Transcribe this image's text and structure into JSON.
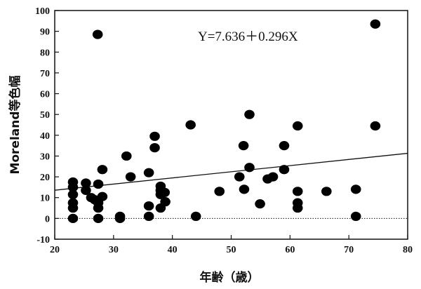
{
  "chart_data": {
    "type": "scatter",
    "title": "",
    "xlabel": "年齢（歳）",
    "ylabel": "Moreland等色幅",
    "xlim": [
      20,
      80
    ],
    "ylim": [
      -10,
      100
    ],
    "xticks": [
      20,
      30,
      40,
      50,
      60,
      70,
      80
    ],
    "yticks": [
      -10,
      0,
      10,
      20,
      30,
      40,
      50,
      60,
      70,
      80,
      90,
      100
    ],
    "xtick_labels": [
      "20",
      "30",
      "40",
      "50",
      "60",
      "70",
      "80"
    ],
    "ytick_labels": [
      "-10",
      "0",
      "10",
      "20",
      "30",
      "40",
      "50",
      "60",
      "70",
      "80",
      "90",
      "100"
    ],
    "equation": "Y=7.636＋0.296X",
    "regression": {
      "intercept": 7.636,
      "slope": 0.296,
      "x_range": [
        20,
        80
      ]
    },
    "reference_line": {
      "y": 0,
      "style": "dotted"
    },
    "point_color": "#000000",
    "points": [
      {
        "x": 27.3,
        "y": 88.5
      },
      {
        "x": 74.5,
        "y": 93.5
      },
      {
        "x": 23.1,
        "y": 17.5
      },
      {
        "x": 23.1,
        "y": 15.0
      },
      {
        "x": 23.1,
        "y": 11.5
      },
      {
        "x": 23.1,
        "y": 7.5
      },
      {
        "x": 23.1,
        "y": 5.0
      },
      {
        "x": 23.1,
        "y": 0.0
      },
      {
        "x": 25.3,
        "y": 17.0
      },
      {
        "x": 25.3,
        "y": 13.5
      },
      {
        "x": 26.2,
        "y": 10.0
      },
      {
        "x": 26.8,
        "y": 9.0
      },
      {
        "x": 27.4,
        "y": 16.5
      },
      {
        "x": 27.4,
        "y": 7.5
      },
      {
        "x": 27.4,
        "y": 5.0
      },
      {
        "x": 27.4,
        "y": 0.0
      },
      {
        "x": 28.1,
        "y": 23.5
      },
      {
        "x": 28.1,
        "y": 10.5
      },
      {
        "x": 31.1,
        "y": 1.0
      },
      {
        "x": 31.1,
        "y": 0.0
      },
      {
        "x": 32.2,
        "y": 30.0
      },
      {
        "x": 32.9,
        "y": 20.0
      },
      {
        "x": 36.0,
        "y": 22.0
      },
      {
        "x": 36.0,
        "y": 6.0
      },
      {
        "x": 36.0,
        "y": 1.0
      },
      {
        "x": 37.0,
        "y": 39.5
      },
      {
        "x": 37.0,
        "y": 34.0
      },
      {
        "x": 38.0,
        "y": 15.5
      },
      {
        "x": 38.0,
        "y": 13.5
      },
      {
        "x": 38.0,
        "y": 11.5
      },
      {
        "x": 38.0,
        "y": 5.0
      },
      {
        "x": 38.7,
        "y": 12.5
      },
      {
        "x": 38.8,
        "y": 8.0
      },
      {
        "x": 43.1,
        "y": 45.0
      },
      {
        "x": 44.0,
        "y": 1.0
      },
      {
        "x": 48.0,
        "y": 13.0
      },
      {
        "x": 51.4,
        "y": 20.0
      },
      {
        "x": 52.1,
        "y": 35.0
      },
      {
        "x": 52.2,
        "y": 14.0
      },
      {
        "x": 53.1,
        "y": 50.0
      },
      {
        "x": 53.1,
        "y": 24.5
      },
      {
        "x": 54.9,
        "y": 7.0
      },
      {
        "x": 56.2,
        "y": 19.0
      },
      {
        "x": 57.1,
        "y": 20.0
      },
      {
        "x": 59.0,
        "y": 35.0
      },
      {
        "x": 59.0,
        "y": 23.5
      },
      {
        "x": 61.3,
        "y": 44.5
      },
      {
        "x": 61.3,
        "y": 13.0
      },
      {
        "x": 61.3,
        "y": 7.5
      },
      {
        "x": 61.3,
        "y": 5.0
      },
      {
        "x": 66.2,
        "y": 13.0
      },
      {
        "x": 71.2,
        "y": 14.0
      },
      {
        "x": 71.2,
        "y": 1.0
      },
      {
        "x": 74.5,
        "y": 44.5
      }
    ]
  }
}
